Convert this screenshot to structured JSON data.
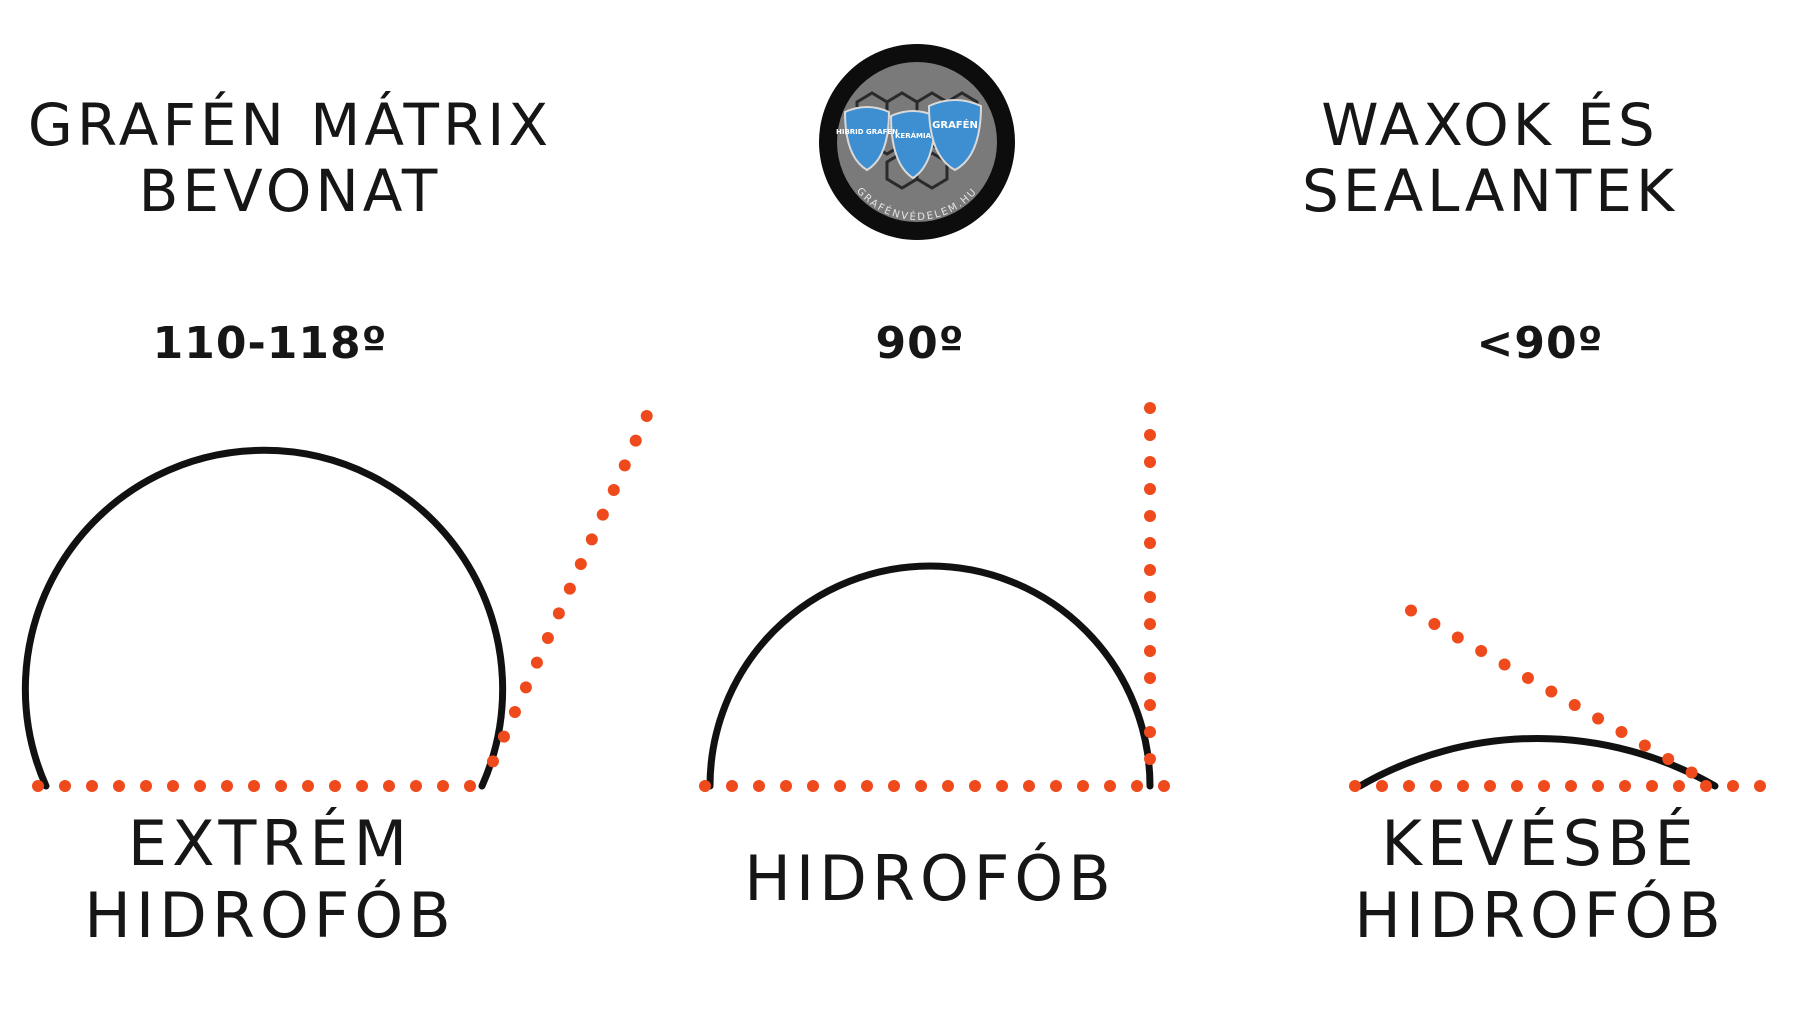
{
  "panels": [
    {
      "title": [
        "GRAFÉN MÁTRIX",
        "BEVONAT"
      ],
      "angle": "110-118º",
      "label": [
        "EXTRÉM",
        "HIDROFÓB"
      ],
      "contact_angle_deg": 114
    },
    {
      "title": [],
      "angle": "90º",
      "label": [
        "HIDROFÓB"
      ],
      "contact_angle_deg": 90
    },
    {
      "title": [
        "WAXOK ÉS",
        "SEALANTEK"
      ],
      "angle": "<90º",
      "label": [
        "KEVÉSBÉ",
        "HIDROFÓB"
      ],
      "contact_angle_deg": 30
    }
  ],
  "logo": {
    "shields": [
      "HIBRID GRAFÉN",
      "KERÁMIA",
      "GRAFÉN"
    ],
    "ring_text": "GRAFÉNVÉDELEM.HU"
  },
  "colors": {
    "droplet": "#111111",
    "dotted_line": "#ee4a1c",
    "text": "#161616",
    "shield": "#3d8fd1"
  }
}
